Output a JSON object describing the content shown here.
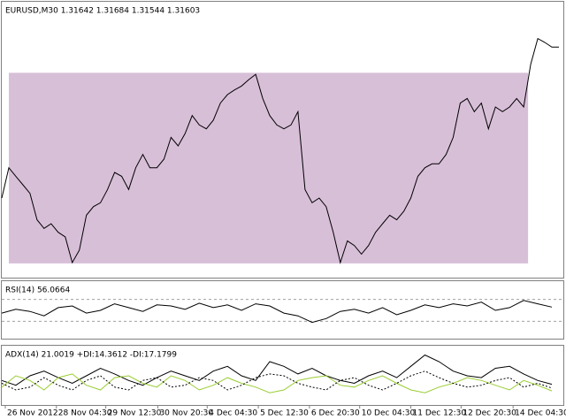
{
  "chart_data": [
    {
      "type": "line",
      "title": "EURUSD,M30  1.31642 1.31684 1.31544 1.31603",
      "xlim": [
        0,
        636
      ],
      "ylim": [
        1.2866,
        1.3216
      ],
      "rectangle": {
        "xlim": [
          8,
          597
        ],
        "ylim": [
          1.2882,
          1.3127
        ],
        "color": "#d8bfd8"
      },
      "x": [
        0,
        8,
        16,
        24,
        32,
        40,
        48,
        56,
        64,
        72,
        80,
        88,
        96,
        104,
        112,
        120,
        128,
        136,
        144,
        152,
        160,
        168,
        176,
        184,
        192,
        200,
        208,
        216,
        224,
        232,
        240,
        248,
        256,
        264,
        272,
        280,
        288,
        296,
        304,
        312,
        320,
        328,
        336,
        344,
        352,
        360,
        368,
        376,
        384,
        392,
        400,
        408,
        416,
        424,
        432,
        440,
        448,
        456,
        464,
        472,
        480,
        488,
        496,
        504,
        512,
        520,
        528,
        536,
        544,
        552,
        560,
        568,
        576,
        584,
        592,
        600,
        608,
        616,
        624,
        632
      ],
      "series": [
        {
          "color": "#000000",
          "values": [
            1.2966,
            1.3005,
            1.2994,
            1.2983,
            1.2972,
            1.2938,
            1.2927,
            1.2933,
            1.2922,
            1.2916,
            1.2883,
            1.2899,
            1.2944,
            1.2955,
            1.296,
            1.2977,
            1.2999,
            1.2994,
            1.2977,
            1.3005,
            1.3022,
            1.3005,
            1.3005,
            1.3016,
            1.3044,
            1.3033,
            1.3049,
            1.3072,
            1.306,
            1.3055,
            1.3066,
            1.3088,
            1.3099,
            1.3105,
            1.311,
            1.3118,
            1.3125,
            1.3094,
            1.3072,
            1.306,
            1.3055,
            1.306,
            1.3077,
            1.2977,
            1.296,
            1.2966,
            1.2955,
            1.2922,
            1.2883,
            1.2911,
            1.2905,
            1.2894,
            1.2905,
            1.2922,
            1.2933,
            1.2944,
            1.2938,
            1.2949,
            1.2966,
            1.2994,
            1.3005,
            1.301,
            1.301,
            1.3022,
            1.3044,
            1.3088,
            1.3094,
            1.3077,
            1.3088,
            1.3055,
            1.3083,
            1.3077,
            1.3083,
            1.3094,
            1.3083,
            1.3138,
            1.3171,
            1.3166,
            1.316,
            1.316
          ]
        }
      ]
    },
    {
      "type": "line",
      "title": "RSI(14) 56.0664",
      "xlim": [
        0,
        636
      ],
      "ylim": [
        0,
        100
      ],
      "levels": [
        70,
        30
      ],
      "x": [
        0,
        16,
        32,
        48,
        64,
        80,
        96,
        112,
        128,
        144,
        160,
        176,
        192,
        208,
        224,
        240,
        256,
        272,
        288,
        304,
        320,
        336,
        352,
        368,
        384,
        400,
        416,
        432,
        448,
        464,
        480,
        496,
        512,
        528,
        544,
        560,
        576,
        592,
        608,
        624
      ],
      "series": [
        {
          "color": "#000000",
          "values": [
            45,
            52,
            48,
            40,
            55,
            58,
            45,
            50,
            62,
            55,
            48,
            60,
            58,
            52,
            63,
            55,
            60,
            50,
            62,
            58,
            45,
            40,
            28,
            35,
            48,
            52,
            45,
            55,
            42,
            50,
            60,
            55,
            62,
            58,
            65,
            50,
            55,
            68,
            62,
            56
          ]
        }
      ]
    },
    {
      "type": "line",
      "title": "ADX(14) 21.0019 +DI:14.3612 -DI:17.1799",
      "xlim": [
        0,
        636
      ],
      "ylim": [
        0,
        60
      ],
      "x": [
        0,
        16,
        32,
        48,
        64,
        80,
        96,
        112,
        128,
        144,
        160,
        176,
        192,
        208,
        224,
        240,
        256,
        272,
        288,
        304,
        320,
        336,
        352,
        368,
        384,
        400,
        416,
        432,
        448,
        464,
        480,
        496,
        512,
        528,
        544,
        560,
        576,
        592,
        608,
        624
      ],
      "series": [
        {
          "color": "#000000",
          "values": [
            25,
            20,
            30,
            35,
            28,
            22,
            30,
            38,
            32,
            25,
            20,
            28,
            35,
            30,
            25,
            35,
            40,
            30,
            25,
            45,
            40,
            32,
            38,
            30,
            25,
            22,
            30,
            35,
            28,
            40,
            52,
            45,
            35,
            30,
            28,
            38,
            40,
            32,
            25,
            21
          ]
        },
        {
          "color": "#9acd32",
          "values": [
            18,
            30,
            25,
            15,
            28,
            32,
            20,
            15,
            28,
            30,
            22,
            18,
            30,
            25,
            15,
            20,
            28,
            22,
            18,
            12,
            15,
            25,
            28,
            30,
            20,
            18,
            25,
            30,
            22,
            15,
            12,
            18,
            22,
            28,
            25,
            20,
            15,
            25,
            20,
            14
          ]
        },
        {
          "color": "#000000",
          "dashed": true,
          "values": [
            22,
            15,
            18,
            28,
            20,
            15,
            25,
            30,
            18,
            15,
            25,
            28,
            18,
            20,
            28,
            25,
            15,
            20,
            28,
            32,
            30,
            22,
            18,
            15,
            25,
            28,
            20,
            15,
            22,
            30,
            35,
            28,
            22,
            18,
            20,
            25,
            28,
            18,
            22,
            17
          ]
        }
      ],
      "xticks": [
        {
          "value": 4,
          "label": "26 Nov 2012"
        },
        {
          "value": 62,
          "label": "28 Nov 04:30"
        },
        {
          "value": 118,
          "label": "29 Nov 12:30"
        },
        {
          "value": 177,
          "label": "30 Nov 20:30"
        },
        {
          "value": 233,
          "label": "4 Dec 04:30"
        },
        {
          "value": 291,
          "label": "5 Dec 12:30"
        },
        {
          "value": 349,
          "label": "6 Dec 20:30"
        },
        {
          "value": 406,
          "label": "10 Dec 04:30"
        },
        {
          "value": 464,
          "label": "11 Dec 12:30"
        },
        {
          "value": 521,
          "label": "12 Dec 20:30"
        },
        {
          "value": 580,
          "label": "14 Dec 04:30"
        }
      ]
    }
  ]
}
